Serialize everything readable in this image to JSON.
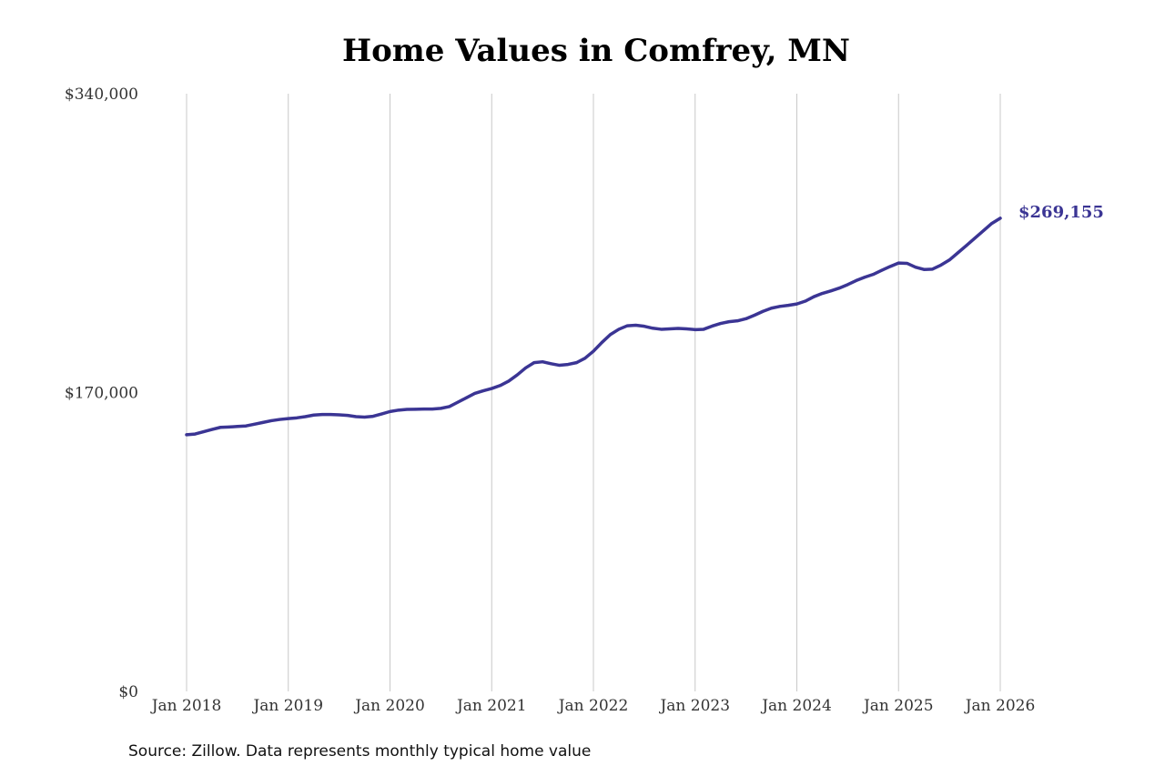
{
  "chart_data": {
    "type": "line",
    "title": "Home Values in Comfrey, MN",
    "xlabel": "",
    "ylabel": "",
    "ylim": [
      0,
      340000
    ],
    "y_ticks": [
      {
        "value": 0,
        "label": "$0"
      },
      {
        "value": 170000,
        "label": "$170,000"
      },
      {
        "value": 340000,
        "label": "$340,000"
      }
    ],
    "x_ticks": [
      {
        "value": "2018-01",
        "label": "Jan 2018"
      },
      {
        "value": "2019-01",
        "label": "Jan 2019"
      },
      {
        "value": "2020-01",
        "label": "Jan 2020"
      },
      {
        "value": "2021-01",
        "label": "Jan 2021"
      },
      {
        "value": "2022-01",
        "label": "Jan 2022"
      },
      {
        "value": "2023-01",
        "label": "Jan 2023"
      },
      {
        "value": "2024-01",
        "label": "Jan 2024"
      },
      {
        "value": "2025-01",
        "label": "Jan 2025"
      },
      {
        "value": "2026-01",
        "label": "Jan 2026"
      }
    ],
    "grid": "vertical",
    "legend": "none",
    "series_color": "#3b3594",
    "end_label": "$269,155",
    "series": [
      {
        "points": [
          [
            "2018-01",
            146000
          ],
          [
            "2018-02",
            146400
          ],
          [
            "2018-03",
            147700
          ],
          [
            "2018-04",
            149000
          ],
          [
            "2018-05",
            150200
          ],
          [
            "2018-06",
            150400
          ],
          [
            "2018-07",
            150700
          ],
          [
            "2018-08",
            151000
          ],
          [
            "2018-09",
            152000
          ],
          [
            "2018-10",
            153000
          ],
          [
            "2018-11",
            154000
          ],
          [
            "2018-12",
            154700
          ],
          [
            "2019-01",
            155200
          ],
          [
            "2019-02",
            155600
          ],
          [
            "2019-03",
            156300
          ],
          [
            "2019-04",
            157200
          ],
          [
            "2019-05",
            157500
          ],
          [
            "2019-06",
            157500
          ],
          [
            "2019-07",
            157300
          ],
          [
            "2019-08",
            157000
          ],
          [
            "2019-09",
            156300
          ],
          [
            "2019-10",
            156000
          ],
          [
            "2019-11",
            156500
          ],
          [
            "2019-12",
            157800
          ],
          [
            "2020-01",
            159200
          ],
          [
            "2020-02",
            160000
          ],
          [
            "2020-03",
            160400
          ],
          [
            "2020-04",
            160500
          ],
          [
            "2020-05",
            160600
          ],
          [
            "2020-06",
            160600
          ],
          [
            "2020-07",
            161000
          ],
          [
            "2020-08",
            162000
          ],
          [
            "2020-09",
            164500
          ],
          [
            "2020-10",
            167000
          ],
          [
            "2020-11",
            169500
          ],
          [
            "2020-12",
            171000
          ],
          [
            "2021-01",
            172300
          ],
          [
            "2021-02",
            174000
          ],
          [
            "2021-03",
            176500
          ],
          [
            "2021-04",
            180000
          ],
          [
            "2021-05",
            184000
          ],
          [
            "2021-06",
            187000
          ],
          [
            "2021-07",
            187500
          ],
          [
            "2021-08",
            186400
          ],
          [
            "2021-09",
            185500
          ],
          [
            "2021-10",
            186000
          ],
          [
            "2021-11",
            187000
          ],
          [
            "2021-12",
            189500
          ],
          [
            "2022-01",
            193500
          ],
          [
            "2022-02",
            198500
          ],
          [
            "2022-03",
            203000
          ],
          [
            "2022-04",
            206000
          ],
          [
            "2022-05",
            208000
          ],
          [
            "2022-06",
            208300
          ],
          [
            "2022-07",
            207700
          ],
          [
            "2022-08",
            206600
          ],
          [
            "2022-09",
            206000
          ],
          [
            "2022-10",
            206200
          ],
          [
            "2022-11",
            206500
          ],
          [
            "2022-12",
            206200
          ],
          [
            "2023-01",
            205800
          ],
          [
            "2023-02",
            206000
          ],
          [
            "2023-03",
            207800
          ],
          [
            "2023-04",
            209300
          ],
          [
            "2023-05",
            210300
          ],
          [
            "2023-06",
            210800
          ],
          [
            "2023-07",
            212000
          ],
          [
            "2023-08",
            214000
          ],
          [
            "2023-09",
            216200
          ],
          [
            "2023-10",
            218000
          ],
          [
            "2023-11",
            219000
          ],
          [
            "2023-12",
            219600
          ],
          [
            "2024-01",
            220400
          ],
          [
            "2024-02",
            222000
          ],
          [
            "2024-03",
            224500
          ],
          [
            "2024-04",
            226400
          ],
          [
            "2024-05",
            227800
          ],
          [
            "2024-06",
            229400
          ],
          [
            "2024-07",
            231400
          ],
          [
            "2024-08",
            233700
          ],
          [
            "2024-09",
            235600
          ],
          [
            "2024-10",
            237200
          ],
          [
            "2024-11",
            239500
          ],
          [
            "2024-12",
            241700
          ],
          [
            "2025-01",
            243700
          ],
          [
            "2025-02",
            243500
          ],
          [
            "2025-03",
            241300
          ],
          [
            "2025-04",
            240000
          ],
          [
            "2025-05",
            240200
          ],
          [
            "2025-06",
            242500
          ],
          [
            "2025-07",
            245400
          ],
          [
            "2025-08",
            249500
          ],
          [
            "2025-09",
            253600
          ],
          [
            "2025-10",
            257800
          ],
          [
            "2025-11",
            262000
          ],
          [
            "2025-12",
            266200
          ],
          [
            "2026-01",
            269155
          ]
        ]
      }
    ]
  },
  "footer": {
    "source": "Source: Zillow. Data represents monthly typical home value"
  }
}
